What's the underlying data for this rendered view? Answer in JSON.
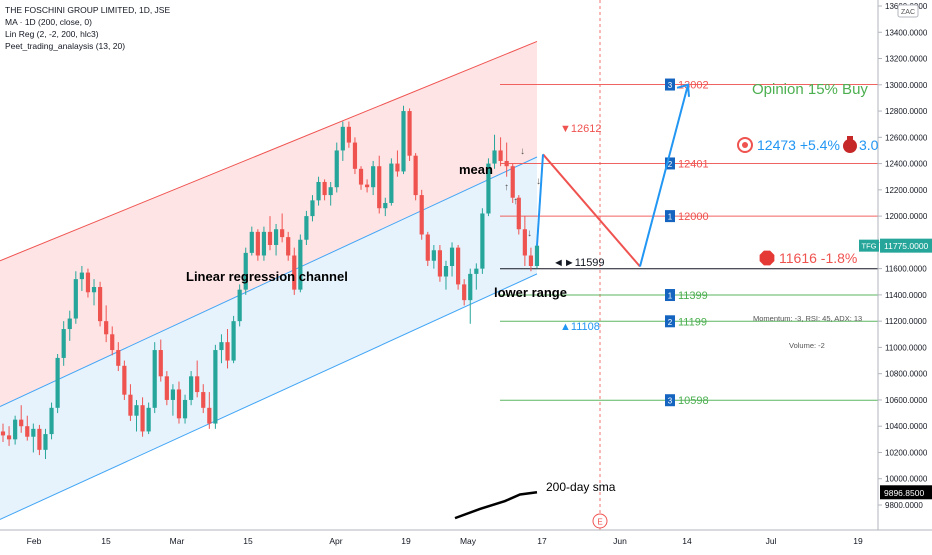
{
  "header": {
    "symbol_line": "THE FOSCHINI GROUP LIMITED, 1D, JSE",
    "indicator_1": "MA · 1D (200, close, 0)",
    "indicator_2": "Lin Reg (2, -2, 200, hlc3)",
    "indicator_3": "Peet_trading_analaysis (13, 20)",
    "currency_badge": "ZAC"
  },
  "annotations": {
    "opinion": "Opinion 15% Buy",
    "target_text": "12473 +5.4%",
    "target_extra": "3.0",
    "stop_text": "11616 -1.8%",
    "mean_label": "mean",
    "channel_label": "Linear regression channel",
    "lower_range_label": "lower range",
    "sma_label": "200-day sma",
    "high_marker": "▼12612",
    "low_marker": "▲11108",
    "pivot_marker": "◄►11599",
    "momentum_text": "Momentum: -3, RSI: 45, ADX: 13",
    "volume_text": "Volume: -2",
    "event_marker": "E"
  },
  "price_labels": {
    "symbol_tag": "TFG",
    "last_price": "11775.0000",
    "sma_price": "9896.8500"
  },
  "colors": {
    "up": "#26a69a",
    "down": "#ef5350",
    "upper_channel": "#ffdfe0",
    "lower_channel": "#e3f2fd",
    "resistance": "#ef5350",
    "support": "#4caf50",
    "projection_up": "#2196f3",
    "projection_down": "#ef5350",
    "opinion_text": "#4caf50",
    "target_text": "#2196f3",
    "stop_text": "#ef5350"
  },
  "chart_data": {
    "type": "candlestick",
    "title": "THE FOSCHINI GROUP LIMITED, 1D, JSE",
    "y_axis": {
      "range": [
        9700,
        13700
      ],
      "ticks": [
        9800,
        10000,
        10200,
        10400,
        10600,
        10800,
        11000,
        11200,
        11400,
        11600,
        11800,
        12000,
        12200,
        12400,
        12600,
        12800,
        13000,
        13200,
        13400,
        13600
      ],
      "tick_labels": [
        "9800.0000",
        "10000.0000",
        "10200.0000",
        "10400.0000",
        "10600.0000",
        "10800.0000",
        "11000.0000",
        "11200.0000",
        "11400.0000",
        "11600.0000",
        "11800.0000",
        "12000.0000",
        "12200.0000",
        "12400.0000",
        "12600.0000",
        "12800.0000",
        "13000.0000",
        "13200.0000",
        "13400.0000",
        "13600.0000"
      ]
    },
    "x_axis": {
      "ticks": [
        "Feb",
        "15",
        "Mar",
        "15",
        "Apr",
        "19",
        "May",
        "17",
        "Jun",
        "14",
        "Jul",
        "19"
      ]
    },
    "candles_ohlc": [
      [
        10360,
        10420,
        10280,
        10330
      ],
      [
        10330,
        10400,
        10250,
        10300
      ],
      [
        10300,
        10480,
        10260,
        10450
      ],
      [
        10450,
        10560,
        10350,
        10400
      ],
      [
        10400,
        10480,
        10290,
        10320
      ],
      [
        10320,
        10420,
        10200,
        10380
      ],
      [
        10380,
        10410,
        10180,
        10220
      ],
      [
        10220,
        10380,
        10150,
        10340
      ],
      [
        10340,
        10580,
        10300,
        10540
      ],
      [
        10540,
        10950,
        10500,
        10920
      ],
      [
        10920,
        11200,
        10860,
        11140
      ],
      [
        11140,
        11280,
        11050,
        11220
      ],
      [
        11220,
        11580,
        11180,
        11520
      ],
      [
        11520,
        11620,
        11430,
        11570
      ],
      [
        11570,
        11600,
        11380,
        11420
      ],
      [
        11420,
        11520,
        11320,
        11460
      ],
      [
        11460,
        11500,
        11160,
        11200
      ],
      [
        11200,
        11320,
        11040,
        11100
      ],
      [
        11100,
        11160,
        10940,
        10980
      ],
      [
        10980,
        11040,
        10820,
        10860
      ],
      [
        10860,
        10900,
        10600,
        10640
      ],
      [
        10640,
        10720,
        10440,
        10480
      ],
      [
        10480,
        10600,
        10360,
        10560
      ],
      [
        10560,
        10620,
        10320,
        10360
      ],
      [
        10360,
        10580,
        10340,
        10540
      ],
      [
        10540,
        11040,
        10500,
        10980
      ],
      [
        10980,
        11060,
        10740,
        10780
      ],
      [
        10780,
        10820,
        10560,
        10600
      ],
      [
        10600,
        10720,
        10480,
        10680
      ],
      [
        10680,
        10740,
        10420,
        10460
      ],
      [
        10460,
        10640,
        10420,
        10600
      ],
      [
        10600,
        10820,
        10560,
        10780
      ],
      [
        10780,
        10900,
        10620,
        10660
      ],
      [
        10660,
        10720,
        10500,
        10540
      ],
      [
        10540,
        10660,
        10380,
        10420
      ],
      [
        10420,
        11020,
        10380,
        10980
      ],
      [
        10980,
        11100,
        10880,
        11040
      ],
      [
        11040,
        11140,
        10840,
        10900
      ],
      [
        10900,
        11240,
        10880,
        11200
      ],
      [
        11200,
        11480,
        11160,
        11440
      ],
      [
        11440,
        11760,
        11400,
        11720
      ],
      [
        11720,
        11920,
        11700,
        11880
      ],
      [
        11880,
        11900,
        11660,
        11700
      ],
      [
        11700,
        11920,
        11660,
        11880
      ],
      [
        11880,
        12000,
        11740,
        11780
      ],
      [
        11780,
        11940,
        11700,
        11900
      ],
      [
        11900,
        12020,
        11800,
        11840
      ],
      [
        11840,
        11880,
        11660,
        11700
      ],
      [
        11700,
        11760,
        11400,
        11440
      ],
      [
        11440,
        11860,
        11420,
        11820
      ],
      [
        11820,
        12040,
        11780,
        12000
      ],
      [
        12000,
        12160,
        11960,
        12120
      ],
      [
        12120,
        12300,
        12080,
        12260
      ],
      [
        12260,
        12280,
        12120,
        12160
      ],
      [
        12160,
        12260,
        12080,
        12220
      ],
      [
        12220,
        12560,
        12180,
        12500
      ],
      [
        12500,
        12720,
        12420,
        12680
      ],
      [
        12680,
        12720,
        12520,
        12560
      ],
      [
        12560,
        12600,
        12320,
        12360
      ],
      [
        12360,
        12380,
        12200,
        12240
      ],
      [
        12240,
        12280,
        12180,
        12220
      ],
      [
        12220,
        12420,
        12160,
        12380
      ],
      [
        12380,
        12460,
        12020,
        12060
      ],
      [
        12060,
        12140,
        12000,
        12100
      ],
      [
        12100,
        12440,
        12080,
        12400
      ],
      [
        12400,
        12500,
        12300,
        12340
      ],
      [
        12340,
        12840,
        12320,
        12800
      ],
      [
        12800,
        12820,
        12420,
        12460
      ],
      [
        12460,
        12480,
        12120,
        12160
      ],
      [
        12160,
        12200,
        11820,
        11860
      ],
      [
        11860,
        11880,
        11620,
        11660
      ],
      [
        11660,
        11780,
        11600,
        11740
      ],
      [
        11740,
        11780,
        11500,
        11540
      ],
      [
        11540,
        11660,
        11440,
        11620
      ],
      [
        11620,
        11800,
        11540,
        11760
      ],
      [
        11760,
        11780,
        11440,
        11480
      ],
      [
        11480,
        11520,
        11320,
        11360
      ],
      [
        11360,
        11600,
        11180,
        11560
      ],
      [
        11560,
        11640,
        11440,
        11600
      ],
      [
        11600,
        12060,
        11560,
        12020
      ],
      [
        12020,
        12440,
        12000,
        12400
      ],
      [
        12400,
        12620,
        12360,
        12500
      ],
      [
        12500,
        12600,
        12380,
        12420
      ],
      [
        12420,
        12560,
        12300,
        12380
      ],
      [
        12380,
        12400,
        12100,
        12140
      ],
      [
        12140,
        12160,
        11860,
        11900
      ],
      [
        11900,
        12000,
        11620,
        11700
      ],
      [
        11700,
        11760,
        11580,
        11620
      ],
      [
        11620,
        11800,
        11600,
        11775
      ]
    ],
    "regression_channel": {
      "upper_start": 11660,
      "upper_end": 13330,
      "mid_start": 10550,
      "mid_end": 12450,
      "lower_start": 9690,
      "lower_end": 11560
    },
    "sma_200": [
      9700,
      9770,
      9830,
      9880,
      9897
    ],
    "levels": [
      {
        "rank": "3",
        "value": 13002,
        "label": "13002",
        "kind": "resistance"
      },
      {
        "rank": "2",
        "value": 12401,
        "label": "12401",
        "kind": "resistance"
      },
      {
        "rank": "1",
        "value": 12000,
        "label": "12000",
        "kind": "resistance"
      },
      {
        "rank": "1",
        "value": 11399,
        "label": "11399",
        "kind": "support"
      },
      {
        "rank": "2",
        "value": 11199,
        "label": "11199",
        "kind": "support"
      },
      {
        "rank": "3",
        "value": 10598,
        "label": "10598",
        "kind": "support"
      }
    ],
    "pivot_level": 11599,
    "last_price": 11775,
    "sma_price_value": 9896.85,
    "projection": {
      "start": 11775,
      "peak": 12440,
      "trough": 11616,
      "target": 13000
    }
  }
}
